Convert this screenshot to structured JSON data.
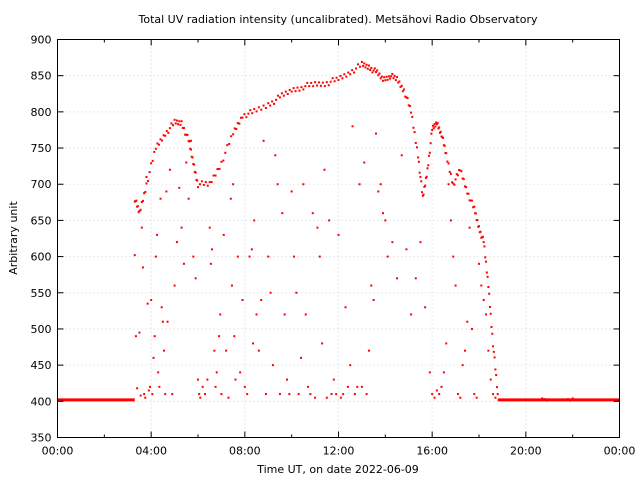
{
  "chart_data": {
    "type": "scatter",
    "title": "Total UV radiation intensity (uncalibrated). Metsähovi Radio Observatory",
    "xlabel": "Time UT, on date 2022-06-09",
    "ylabel": "Arbitrary unit",
    "xlim": [
      0,
      24
    ],
    "ylim": [
      350,
      900
    ],
    "xticks": [
      {
        "value": 0,
        "label": "00:00"
      },
      {
        "value": 4,
        "label": "04:00"
      },
      {
        "value": 8,
        "label": "08:00"
      },
      {
        "value": 12,
        "label": "12:00"
      },
      {
        "value": 16,
        "label": "16:00"
      },
      {
        "value": 20,
        "label": "20:00"
      },
      {
        "value": 24,
        "label": "00:00"
      }
    ],
    "yticks": [
      350,
      400,
      450,
      500,
      550,
      600,
      650,
      700,
      750,
      800,
      850,
      900
    ],
    "grid": true,
    "marker_color": "#ff0000",
    "baseline_segments": [
      {
        "x_start": 0.0,
        "x_end": 3.3,
        "y": 402
      },
      {
        "x_start": 18.8,
        "x_end": 24.0,
        "y": 402
      }
    ],
    "envelope": [
      [
        3.3,
        680
      ],
      [
        3.5,
        660
      ],
      [
        3.8,
        700
      ],
      [
        4.2,
        750
      ],
      [
        4.6,
        770
      ],
      [
        5.0,
        785
      ],
      [
        5.3,
        785
      ],
      [
        5.6,
        760
      ],
      [
        5.8,
        730
      ],
      [
        6.0,
        700
      ],
      [
        6.5,
        700
      ],
      [
        7.0,
        730
      ],
      [
        7.5,
        770
      ],
      [
        7.9,
        795
      ],
      [
        8.4,
        800
      ],
      [
        9.0,
        810
      ],
      [
        9.5,
        820
      ],
      [
        10.0,
        830
      ],
      [
        10.5,
        835
      ],
      [
        11.0,
        838
      ],
      [
        11.5,
        840
      ],
      [
        12.0,
        845
      ],
      [
        12.5,
        855
      ],
      [
        13.0,
        865
      ],
      [
        13.3,
        862
      ],
      [
        13.6,
        855
      ],
      [
        13.9,
        845
      ],
      [
        14.2,
        850
      ],
      [
        14.5,
        845
      ],
      [
        14.8,
        830
      ],
      [
        15.1,
        800
      ],
      [
        15.4,
        740
      ],
      [
        15.6,
        680
      ],
      [
        15.8,
        720
      ],
      [
        16.0,
        775
      ],
      [
        16.2,
        785
      ],
      [
        16.4,
        770
      ],
      [
        16.6,
        740
      ],
      [
        16.9,
        700
      ],
      [
        17.2,
        720
      ],
      [
        17.5,
        690
      ],
      [
        17.8,
        665
      ],
      [
        18.0,
        640
      ],
      [
        18.2,
        620
      ],
      [
        18.4,
        560
      ],
      [
        18.6,
        480
      ],
      [
        18.8,
        410
      ]
    ],
    "scattered_points": [
      [
        3.3,
        602
      ],
      [
        3.35,
        490
      ],
      [
        3.4,
        418
      ],
      [
        3.5,
        495
      ],
      [
        3.55,
        408
      ],
      [
        3.6,
        640
      ],
      [
        3.65,
        585
      ],
      [
        3.7,
        410
      ],
      [
        3.75,
        405
      ],
      [
        3.8,
        710
      ],
      [
        3.85,
        535
      ],
      [
        3.9,
        415
      ],
      [
        3.95,
        420
      ],
      [
        4.0,
        540
      ],
      [
        4.05,
        410
      ],
      [
        4.1,
        460
      ],
      [
        4.15,
        490
      ],
      [
        4.2,
        600
      ],
      [
        4.25,
        630
      ],
      [
        4.3,
        440
      ],
      [
        4.35,
        420
      ],
      [
        4.4,
        680
      ],
      [
        4.45,
        530
      ],
      [
        4.5,
        510
      ],
      [
        4.55,
        470
      ],
      [
        4.6,
        410
      ],
      [
        4.65,
        690
      ],
      [
        4.7,
        510
      ],
      [
        4.8,
        720
      ],
      [
        4.9,
        410
      ],
      [
        5.0,
        560
      ],
      [
        5.1,
        620
      ],
      [
        5.2,
        695
      ],
      [
        5.3,
        640
      ],
      [
        5.4,
        590
      ],
      [
        5.5,
        730
      ],
      [
        5.6,
        680
      ],
      [
        5.7,
        760
      ],
      [
        5.8,
        600
      ],
      [
        5.9,
        570
      ],
      [
        6.0,
        430
      ],
      [
        6.05,
        410
      ],
      [
        6.1,
        405
      ],
      [
        6.2,
        420
      ],
      [
        6.3,
        410
      ],
      [
        6.4,
        430
      ],
      [
        6.5,
        640
      ],
      [
        6.55,
        590
      ],
      [
        6.6,
        610
      ],
      [
        6.7,
        470
      ],
      [
        6.75,
        420
      ],
      [
        6.8,
        440
      ],
      [
        6.9,
        490
      ],
      [
        6.95,
        520
      ],
      [
        7.0,
        410
      ],
      [
        7.1,
        630
      ],
      [
        7.2,
        470
      ],
      [
        7.3,
        405
      ],
      [
        7.4,
        680
      ],
      [
        7.45,
        560
      ],
      [
        7.5,
        700
      ],
      [
        7.55,
        490
      ],
      [
        7.6,
        430
      ],
      [
        7.7,
        600
      ],
      [
        7.8,
        440
      ],
      [
        7.9,
        540
      ],
      [
        8.0,
        420
      ],
      [
        8.1,
        410
      ],
      [
        8.2,
        600
      ],
      [
        8.3,
        610
      ],
      [
        8.35,
        480
      ],
      [
        8.4,
        650
      ],
      [
        8.5,
        520
      ],
      [
        8.6,
        470
      ],
      [
        8.7,
        540
      ],
      [
        8.8,
        760
      ],
      [
        8.9,
        410
      ],
      [
        9.0,
        600
      ],
      [
        9.1,
        550
      ],
      [
        9.2,
        450
      ],
      [
        9.3,
        740
      ],
      [
        9.4,
        700
      ],
      [
        9.5,
        410
      ],
      [
        9.6,
        660
      ],
      [
        9.7,
        520
      ],
      [
        9.8,
        430
      ],
      [
        9.9,
        410
      ],
      [
        10.0,
        690
      ],
      [
        10.1,
        600
      ],
      [
        10.2,
        550
      ],
      [
        10.3,
        410
      ],
      [
        10.4,
        460
      ],
      [
        10.5,
        700
      ],
      [
        10.6,
        520
      ],
      [
        10.7,
        420
      ],
      [
        10.8,
        410
      ],
      [
        10.9,
        660
      ],
      [
        11.0,
        405
      ],
      [
        11.1,
        640
      ],
      [
        11.2,
        600
      ],
      [
        11.3,
        480
      ],
      [
        11.4,
        720
      ],
      [
        11.5,
        405
      ],
      [
        11.6,
        650
      ],
      [
        11.7,
        410
      ],
      [
        11.8,
        430
      ],
      [
        11.9,
        410
      ],
      [
        12.0,
        630
      ],
      [
        12.1,
        405
      ],
      [
        12.2,
        410
      ],
      [
        12.3,
        530
      ],
      [
        12.4,
        420
      ],
      [
        12.5,
        450
      ],
      [
        12.6,
        780
      ],
      [
        12.7,
        410
      ],
      [
        12.8,
        420
      ],
      [
        12.9,
        700
      ],
      [
        13.0,
        420
      ],
      [
        13.1,
        730
      ],
      [
        13.2,
        410
      ],
      [
        13.3,
        470
      ],
      [
        13.4,
        560
      ],
      [
        13.5,
        540
      ],
      [
        13.6,
        770
      ],
      [
        13.7,
        690
      ],
      [
        13.8,
        700
      ],
      [
        13.9,
        660
      ],
      [
        14.0,
        650
      ],
      [
        14.1,
        600
      ],
      [
        14.3,
        620
      ],
      [
        14.5,
        570
      ],
      [
        14.7,
        740
      ],
      [
        14.9,
        610
      ],
      [
        15.1,
        520
      ],
      [
        15.3,
        570
      ],
      [
        15.5,
        620
      ],
      [
        15.7,
        530
      ],
      [
        15.9,
        440
      ],
      [
        16.0,
        410
      ],
      [
        16.1,
        405
      ],
      [
        16.2,
        415
      ],
      [
        16.3,
        410
      ],
      [
        16.4,
        420
      ],
      [
        16.5,
        440
      ],
      [
        16.6,
        480
      ],
      [
        16.7,
        700
      ],
      [
        16.8,
        650
      ],
      [
        16.9,
        600
      ],
      [
        17.0,
        560
      ],
      [
        17.1,
        410
      ],
      [
        17.2,
        405
      ],
      [
        17.3,
        450
      ],
      [
        17.4,
        470
      ],
      [
        17.5,
        510
      ],
      [
        17.6,
        640
      ],
      [
        17.7,
        500
      ],
      [
        17.8,
        410
      ],
      [
        17.9,
        405
      ],
      [
        18.0,
        590
      ],
      [
        18.1,
        560
      ],
      [
        18.2,
        540
      ],
      [
        18.3,
        520
      ],
      [
        18.4,
        470
      ],
      [
        18.5,
        430
      ],
      [
        18.6,
        410
      ],
      [
        18.7,
        405
      ],
      [
        20.6,
        402
      ],
      [
        20.7,
        404
      ],
      [
        20.8,
        403
      ],
      [
        20.9,
        401
      ],
      [
        21.6,
        402
      ],
      [
        21.8,
        403
      ],
      [
        21.9,
        401
      ],
      [
        22.0,
        404
      ]
    ]
  }
}
